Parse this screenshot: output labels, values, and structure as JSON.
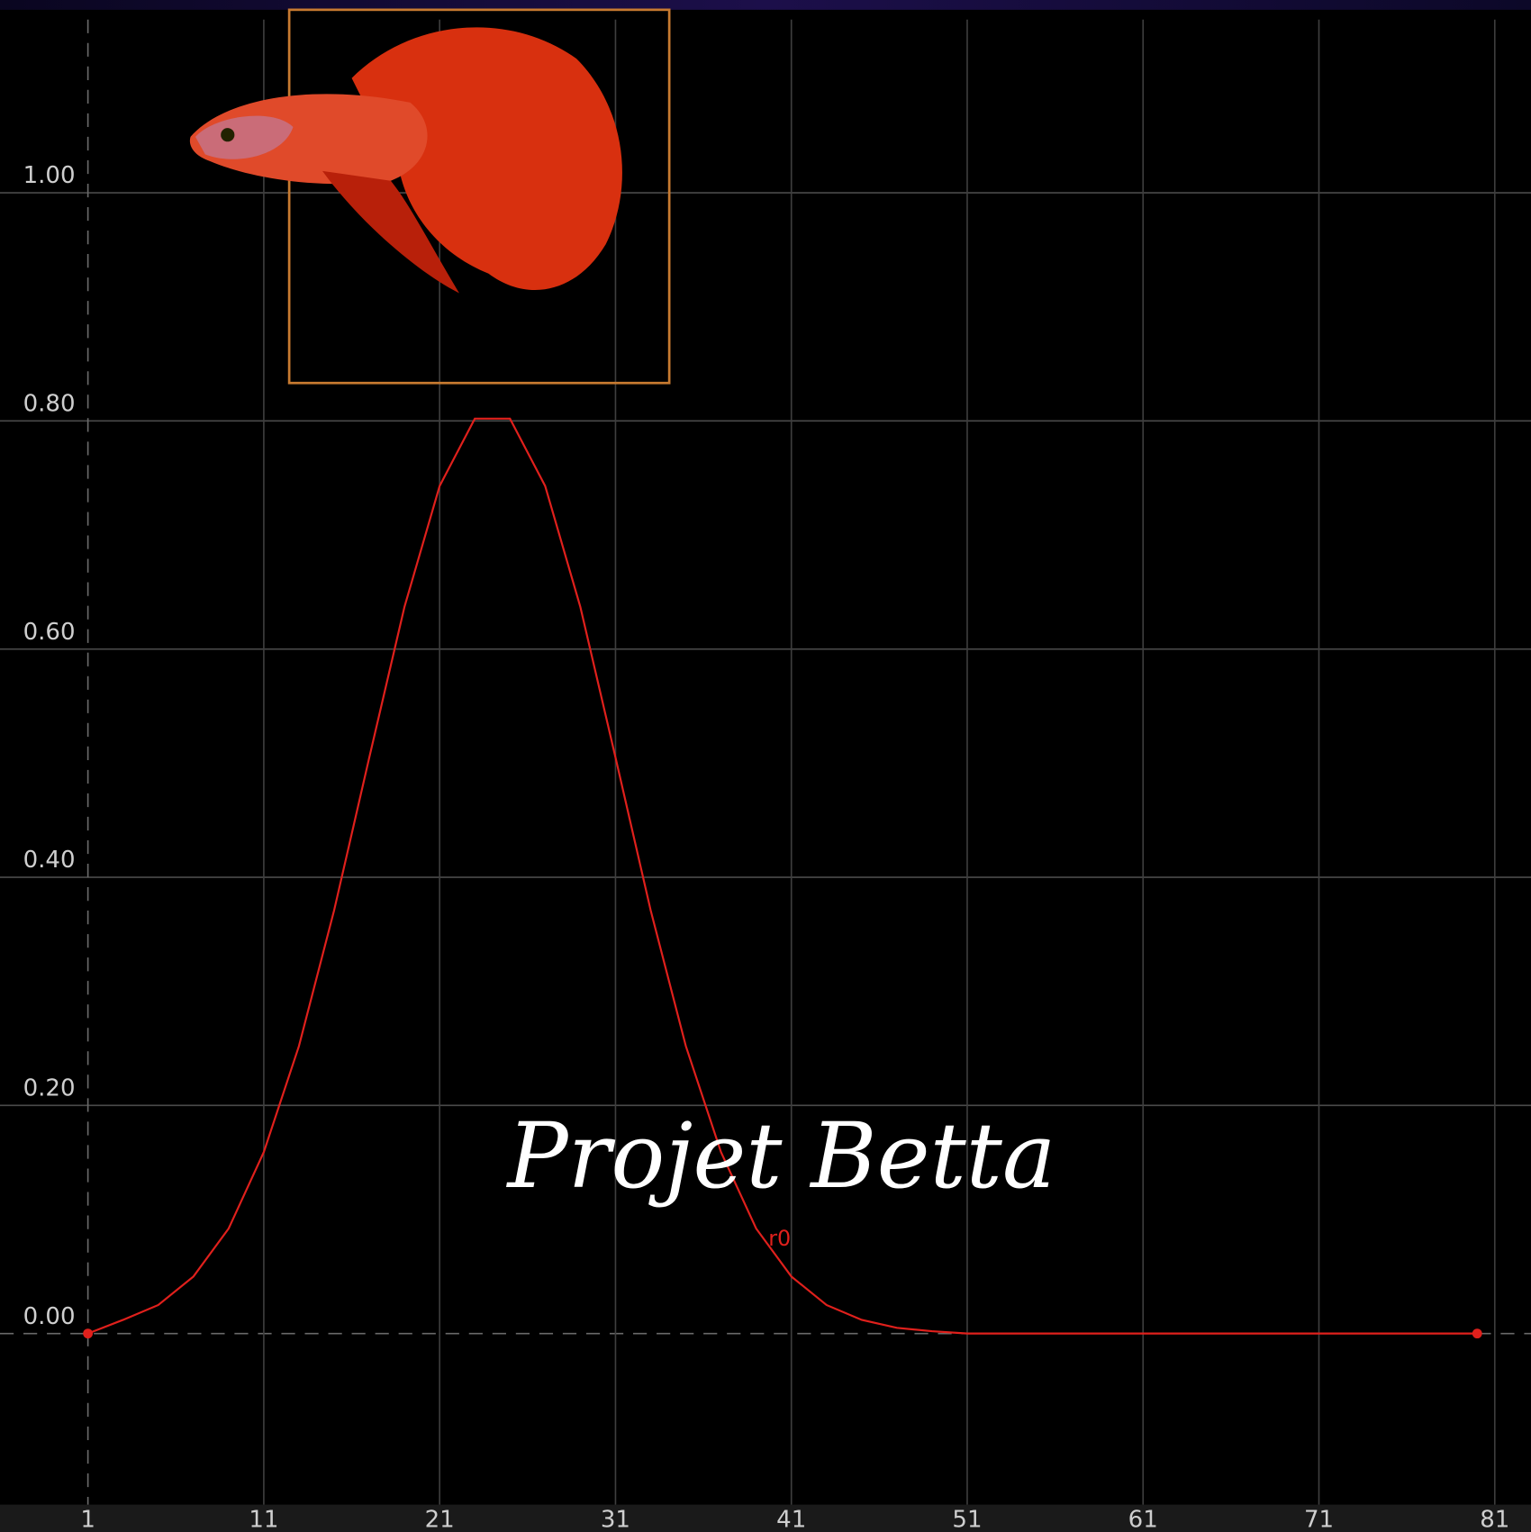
{
  "chart_data": {
    "type": "line",
    "title": "Projet Betta",
    "x": [
      1,
      3,
      5,
      7,
      9,
      11,
      13,
      15,
      17,
      19,
      21,
      23,
      25,
      27,
      29,
      31,
      33,
      35,
      37,
      39,
      41,
      43,
      45,
      47,
      49,
      51,
      80
    ],
    "series": [
      {
        "name": "r0",
        "color": "#e0201c",
        "values": [
          0,
          0.012,
          0.025,
          0.05,
          0.092,
          0.159,
          0.252,
          0.371,
          0.505,
          0.637,
          0.743,
          0.802,
          0.802,
          0.743,
          0.637,
          0.505,
          0.371,
          0.252,
          0.159,
          0.092,
          0.05,
          0.025,
          0.012,
          0.005,
          0.002,
          0,
          0
        ]
      }
    ],
    "xlim": [
      -4,
      83.06
    ],
    "ylim": [
      -0.15,
      1.169
    ],
    "xticks": [
      1,
      11,
      21,
      31,
      41,
      51,
      61,
      71,
      81
    ],
    "yticks": [
      {
        "value": 0,
        "label": "0.00"
      },
      {
        "value": 0.2,
        "label": "0.20"
      },
      {
        "value": 0.4,
        "label": "0.40"
      },
      {
        "value": 0.6,
        "label": "0.60"
      },
      {
        "value": 0.8,
        "label": "0.80"
      },
      {
        "value": 1,
        "label": "1.00"
      }
    ],
    "grid": true
  }
}
